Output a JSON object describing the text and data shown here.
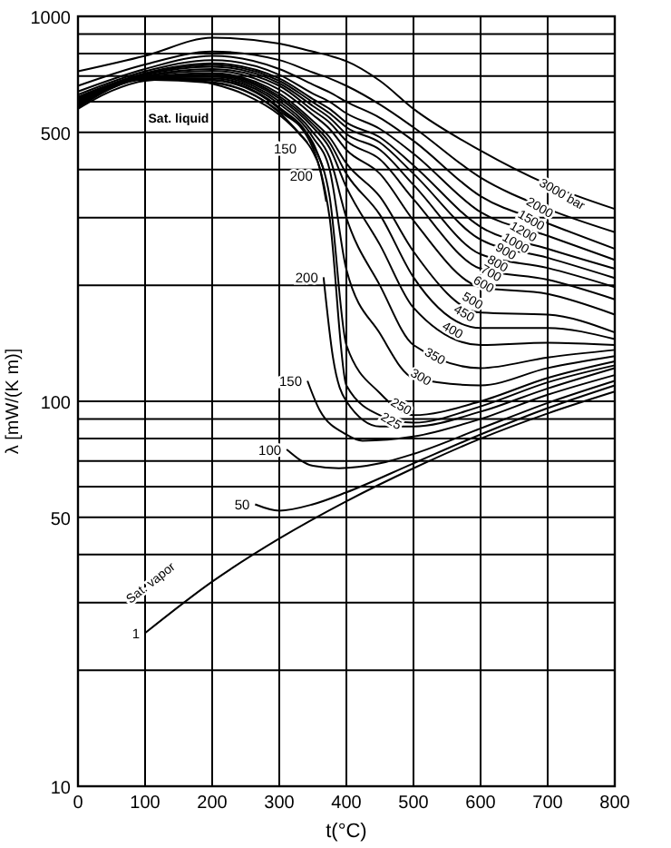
{
  "chart_data": {
    "type": "line",
    "xlabel": "t(°C)",
    "ylabel": "λ [mW/(K m)]",
    "log": "y",
    "grid": true,
    "xlim": [
      0,
      800
    ],
    "xticks": [
      0,
      100,
      200,
      300,
      400,
      500,
      600,
      700,
      800
    ],
    "ylim": [
      10,
      1000
    ],
    "yticks": [
      10,
      {
        "value": 20,
        "label": null
      },
      {
        "value": 30,
        "label": null
      },
      {
        "value": 40,
        "label": null
      },
      50,
      {
        "value": 60,
        "label": null
      },
      {
        "value": 70,
        "label": null
      },
      {
        "value": 80,
        "label": null
      },
      {
        "value": 90,
        "label": null
      },
      100,
      {
        "value": 200,
        "label": null
      },
      {
        "value": 300,
        "label": null
      },
      {
        "value": 400,
        "label": null
      },
      500,
      {
        "value": 600,
        "label": null
      },
      {
        "value": 700,
        "label": null
      },
      {
        "value": 800,
        "label": null
      },
      {
        "value": 900,
        "label": null
      },
      1000
    ],
    "annotations": [
      "Sat. vapor"
    ],
    "series": [
      {
        "name": "Sat. liquid",
        "color": "#000000",
        "x": [
          0,
          50,
          100,
          150,
          200,
          250,
          300,
          330,
          350,
          360,
          370
        ],
        "values": [
          575,
          640,
          680,
          688,
          668,
          625,
          555,
          495,
          445,
          405,
          330
        ]
      },
      {
        "name": "150",
        "color": "#000000",
        "x": [
          0,
          100,
          200,
          300,
          342
        ],
        "values": [
          580,
          685,
          672,
          562,
          470
        ]
      },
      {
        "name": "200",
        "color": "#000000",
        "x": [
          0,
          100,
          200,
          300,
          350,
          366
        ],
        "values": [
          582,
          687,
          675,
          567,
          470,
          400
        ]
      },
      {
        "name": "3000 bar",
        "color": "#000000",
        "x": [
          0,
          100,
          200,
          300,
          350,
          375,
          400,
          450,
          500,
          600,
          700,
          800
        ],
        "values": [
          720,
          790,
          880,
          850,
          810,
          790,
          765,
          680,
          575,
          448,
          366,
          316
        ]
      },
      {
        "name": "2000",
        "color": "#000000",
        "x": [
          0,
          100,
          200,
          300,
          350,
          375,
          400,
          450,
          500,
          600,
          700,
          800
        ],
        "values": [
          660,
          750,
          810,
          770,
          715,
          690,
          660,
          590,
          515,
          381,
          316,
          275
        ]
      },
      {
        "name": "1500",
        "color": "#000000",
        "x": [
          0,
          100,
          200,
          300,
          350,
          375,
          400,
          450,
          500,
          600,
          700,
          800
        ],
        "values": [
          638,
          730,
          790,
          730,
          665,
          635,
          600,
          545,
          475,
          341,
          290,
          249
        ]
      },
      {
        "name": "1200",
        "color": "#000000",
        "x": [
          0,
          100,
          200,
          300,
          350,
          375,
          400,
          450,
          500,
          600,
          700,
          800
        ],
        "values": [
          626,
          720,
          770,
          705,
          630,
          600,
          560,
          510,
          440,
          310,
          269,
          233
        ]
      },
      {
        "name": "1000",
        "color": "#000000",
        "x": [
          0,
          100,
          200,
          300,
          350,
          375,
          400,
          450,
          500,
          600,
          700,
          800
        ],
        "values": [
          618,
          712,
          755,
          690,
          610,
          575,
          530,
          485,
          410,
          284,
          249,
          221
        ]
      },
      {
        "name": "900",
        "color": "#000000",
        "x": [
          0,
          100,
          200,
          300,
          350,
          375,
          400,
          450,
          500,
          600,
          700,
          800
        ],
        "values": [
          614,
          708,
          748,
          680,
          598,
          560,
          515,
          470,
          390,
          263,
          236,
          209
        ]
      },
      {
        "name": "800",
        "color": "#000000",
        "x": [
          0,
          100,
          200,
          300,
          350,
          375,
          400,
          450,
          500,
          600,
          700,
          800
        ],
        "values": [
          610,
          704,
          740,
          670,
          585,
          545,
          495,
          450,
          365,
          241,
          222,
          198
        ]
      },
      {
        "name": "700",
        "color": "#000000",
        "x": [
          0,
          100,
          200,
          300,
          350,
          375,
          400,
          450,
          500,
          600,
          700,
          800
        ],
        "values": [
          606,
          700,
          730,
          660,
          570,
          530,
          475,
          425,
          335,
          221,
          207,
          184
        ]
      },
      {
        "name": "600",
        "color": "#000000",
        "x": [
          0,
          100,
          200,
          300,
          350,
          375,
          400,
          450,
          500,
          600,
          700,
          800
        ],
        "values": [
          602,
          697,
          722,
          645,
          555,
          510,
          450,
          390,
          295,
          198,
          190,
          168
        ]
      },
      {
        "name": "500",
        "color": "#000000",
        "x": [
          0,
          100,
          200,
          300,
          350,
          375,
          400,
          450,
          500,
          600,
          700,
          800
        ],
        "values": [
          598,
          694,
          712,
          630,
          535,
          485,
          415,
          340,
          245,
          170,
          168,
          151
        ]
      },
      {
        "name": "450",
        "color": "#000000",
        "x": [
          0,
          100,
          200,
          300,
          350,
          375,
          400,
          450,
          500,
          600,
          700,
          800
        ],
        "values": [
          596,
          693,
          707,
          620,
          525,
          470,
          390,
          305,
          210,
          155,
          155,
          145
        ]
      },
      {
        "name": "400",
        "color": "#000000",
        "x": [
          0,
          100,
          200,
          300,
          350,
          375,
          400,
          450,
          500,
          600,
          700,
          800
        ],
        "values": [
          594,
          692,
          702,
          612,
          515,
          455,
          360,
          255,
          175,
          140,
          142,
          140
        ]
      },
      {
        "name": "350",
        "color": "#000000",
        "x": [
          0,
          100,
          200,
          300,
          350,
          375,
          400,
          450,
          500,
          600,
          700,
          800
        ],
        "values": [
          592,
          691,
          697,
          602,
          500,
          430,
          300,
          200,
          140,
          122,
          130,
          136
        ]
      },
      {
        "name": "300",
        "color": "#000000",
        "x": [
          0,
          100,
          200,
          300,
          350,
          375,
          400,
          450,
          500,
          600,
          700,
          800
        ],
        "values": [
          590,
          690,
          690,
          592,
          485,
          400,
          220,
          150,
          115,
          110,
          122,
          131
        ]
      },
      {
        "name": "250",
        "color": "#000000",
        "x": [
          0,
          100,
          200,
          300,
          350,
          375,
          400,
          450,
          500,
          600,
          700,
          800
        ],
        "values": [
          587,
          689,
          685,
          580,
          465,
          340,
          140,
          105,
          92,
          100,
          115,
          127
        ]
      },
      {
        "name": "225",
        "color": "#000000",
        "x": [
          0,
          100,
          200,
          300,
          350,
          375,
          400,
          450,
          500,
          600,
          700,
          800
        ],
        "values": [
          586,
          688,
          682,
          575,
          455,
          300,
          110,
          92,
          88,
          97,
          112,
          124
        ]
      },
      {
        "name": "200",
        "color": "#000000",
        "x": [
          366,
          380,
          400,
          450,
          500,
          600,
          700,
          800
        ],
        "values": [
          210,
          130,
          100,
          86,
          86,
          94,
          108,
          122
        ]
      },
      {
        "name": "150",
        "color": "#000000",
        "x": [
          342,
          360,
          400,
          424,
          500,
          600,
          700,
          800
        ],
        "values": [
          113,
          95,
          82,
          79,
          81,
          90,
          104,
          117
        ]
      },
      {
        "name": "100",
        "color": "#000000",
        "x": [
          311,
          350,
          389,
          450,
          500,
          600,
          700,
          800
        ],
        "values": [
          75,
          68,
          67,
          69,
          73,
          85,
          99,
          113
        ]
      },
      {
        "name": "50",
        "color": "#000000",
        "x": [
          264,
          300,
          350,
          400,
          500,
          600,
          700,
          800
        ],
        "values": [
          54,
          52,
          54,
          58,
          69,
          82,
          96,
          110
        ]
      },
      {
        "name": "1",
        "color": "#000000",
        "x": [
          100,
          200,
          300,
          400,
          500,
          600,
          700,
          800
        ],
        "values": [
          25,
          34,
          44,
          55,
          67,
          80,
          93,
          106
        ]
      }
    ]
  }
}
